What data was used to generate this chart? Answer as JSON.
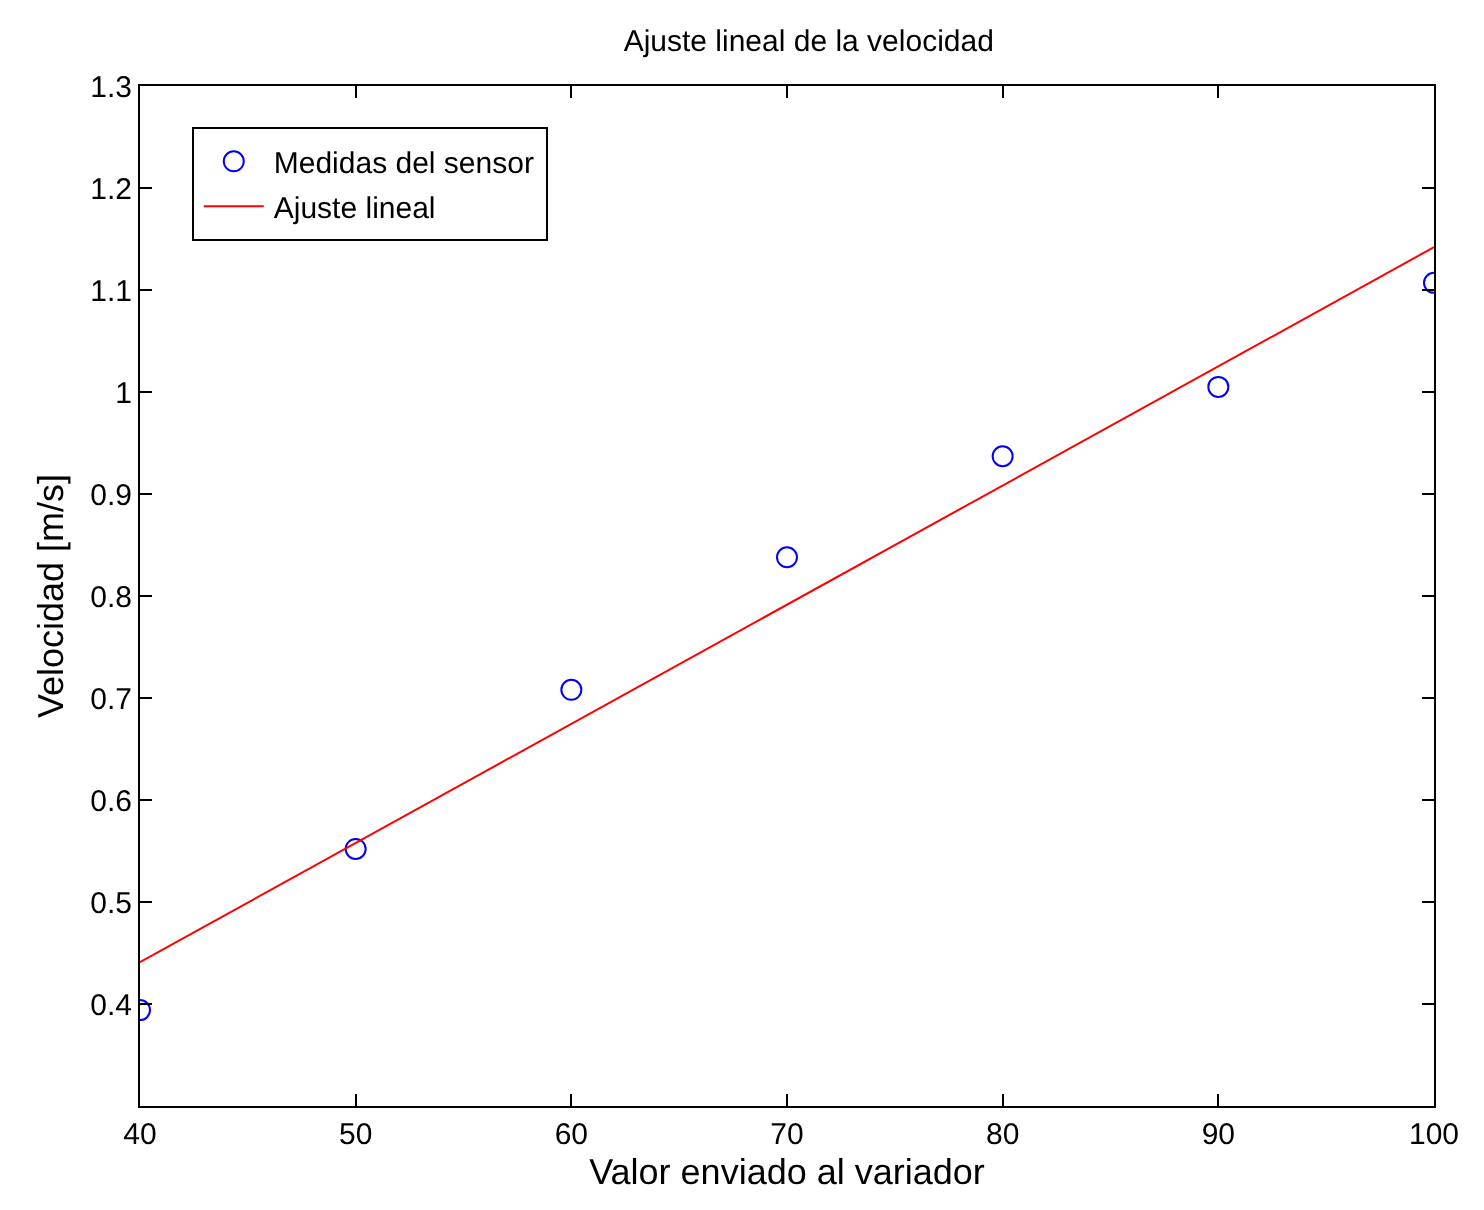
{
  "chart_data": {
    "type": "scatter",
    "title": "Ajuste lineal de la velocidad",
    "xlabel": "Valor enviado al variador",
    "ylabel": "Velocidad [m/s]",
    "x": [
      40,
      50,
      60,
      70,
      80,
      90,
      100
    ],
    "series": [
      {
        "name": "Medidas del sensor",
        "type": "scatter",
        "color": "#0000ff",
        "marker": "circle",
        "values": [
          0.394,
          0.552,
          0.708,
          0.838,
          0.937,
          1.005,
          1.107
        ]
      },
      {
        "name": "Ajuste lineal",
        "type": "line",
        "color": "#ff0000",
        "line_style": "solid",
        "x": [
          40,
          100
        ],
        "values": [
          0.441,
          1.142
        ]
      }
    ],
    "xlim": [
      40,
      100
    ],
    "xticks": [
      40,
      50,
      60,
      70,
      80,
      90,
      100
    ],
    "ylim": [
      0.3,
      1.3
    ],
    "yticks": [
      0.4,
      0.5,
      0.6,
      0.7,
      0.8,
      0.9,
      1,
      1.1,
      1.2,
      1.3
    ],
    "grid": false,
    "legend": "top left"
  }
}
